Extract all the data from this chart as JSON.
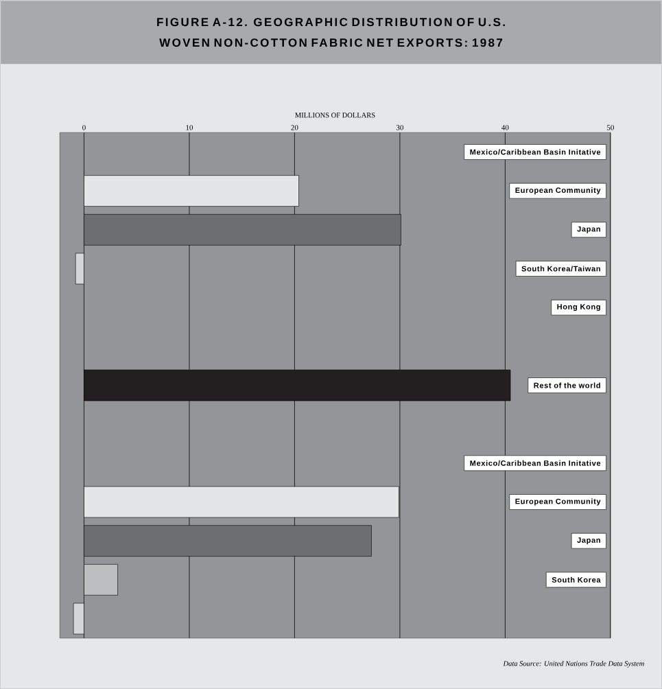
{
  "chart_data": {
    "type": "bar",
    "orientation": "horizontal",
    "title": "FIGURE A-12. GEOGRAPHIC DISTRIBUTION OF U.S. WOVEN NON-COTTON FABRIC NET EXPORTS: 1987",
    "xlabel": "MILLIONS OF DOLLARS",
    "categories": [
      "Mexico/Caribbean Basin Initative",
      "European Community",
      "Japan",
      "South Korea/Taiwan",
      "Hong Kong",
      null,
      "Rest of the world",
      null,
      "Mexico/Caribbean Basin Initative",
      "European Community",
      "Japan",
      "South Korea",
      null
    ],
    "values": [
      0,
      20.4,
      30.1,
      -0.8,
      0,
      0,
      40.5,
      0,
      0,
      29.9,
      27.3,
      3.2,
      -1
    ],
    "colors": [
      "#d5d6d8",
      "#e4e5e7",
      "#6d6e72",
      "#d5d6d8",
      "#e4e5e7",
      "#58595b",
      "#231f20",
      "#58595b",
      "#e4e5e7",
      "#e4e5e7",
      "#6d6e72",
      "#bdbec0",
      "#d5d6d8"
    ],
    "xlim": [
      -2.3,
      50
    ],
    "xticks": [
      0,
      10,
      20,
      30,
      40,
      50
    ],
    "grid": "x",
    "annotations": [
      "Data Source: United Nations Trade Data System"
    ]
  }
}
